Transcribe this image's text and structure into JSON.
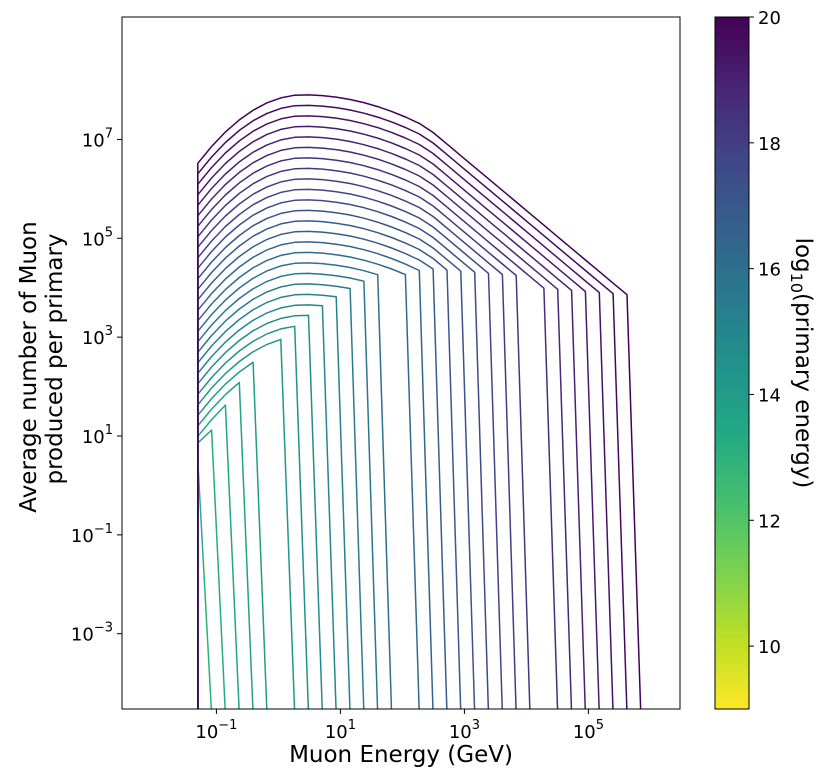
{
  "chart_data": {
    "type": "line",
    "title": "",
    "xlabel": "Muon Energy (GeV)",
    "ylabel_line1": "Average number of Muon",
    "ylabel_line2": "produced per primary",
    "xscale": "log",
    "yscale": "log",
    "xlim": [
      0.003,
      3000000
    ],
    "ylim": [
      3e-05,
      3000000000
    ],
    "x_ticks": [
      {
        "value": 0.1,
        "base": "10",
        "exp": "−1"
      },
      {
        "value": 10,
        "base": "10",
        "exp": "1"
      },
      {
        "value": 1000,
        "base": "10",
        "exp": "3"
      },
      {
        "value": 100000,
        "base": "10",
        "exp": "5"
      }
    ],
    "y_ticks": [
      {
        "value": 0.001,
        "base": "10",
        "exp": "−3"
      },
      {
        "value": 0.1,
        "base": "10",
        "exp": "−1"
      },
      {
        "value": 10,
        "base": "10",
        "exp": "1"
      },
      {
        "value": 1000,
        "base": "10",
        "exp": "3"
      },
      {
        "value": 100000,
        "base": "10",
        "exp": "5"
      },
      {
        "value": 10000000,
        "base": "10",
        "exp": "7"
      }
    ],
    "colorbar": {
      "label_prefix": "log",
      "label_sub": "10",
      "label_suffix": "(primary energy)",
      "range": [
        9,
        20
      ],
      "ticks": [
        "10",
        "12",
        "14",
        "16",
        "18",
        "20"
      ],
      "colormap": "viridis_r"
    },
    "series_generation": {
      "log10_primary_energy_min": 9.5,
      "log10_primary_energy_max": 20.0,
      "log10_primary_energy_step": 0.25,
      "muon_energy_min_gev": 0.05,
      "muon_energy_max_gev": 700000,
      "peak_muons_at_1e20": 80000000,
      "peak_muon_energy_gev": 2.5
    },
    "grid": false,
    "legend": "none (colorbar at right)"
  }
}
